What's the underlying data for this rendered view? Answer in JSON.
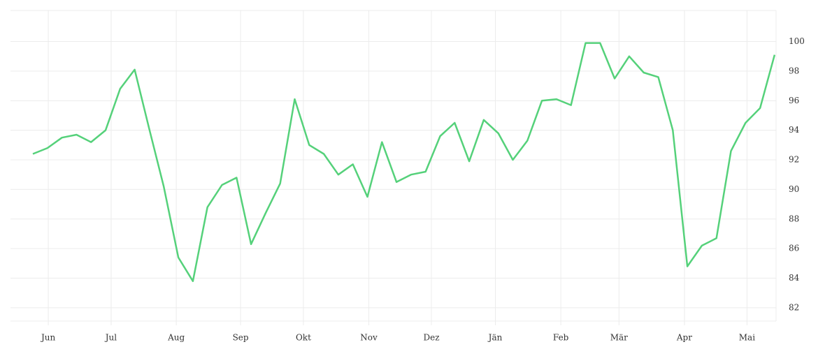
{
  "chart_data": {
    "type": "line",
    "series": [
      {
        "color": "#55d17a",
        "values": [
          92.4,
          92.8,
          93.5,
          93.7,
          93.2,
          94.0,
          96.8,
          98.1,
          94.1,
          90.2,
          85.4,
          83.8,
          88.8,
          90.3,
          90.8,
          86.3,
          88.4,
          90.4,
          96.1,
          93.0,
          92.4,
          91.0,
          91.7,
          89.5,
          93.2,
          90.5,
          91.0,
          91.2,
          93.6,
          94.5,
          91.9,
          94.7,
          93.8,
          92.0,
          93.3,
          96.0,
          96.1,
          95.7,
          99.9,
          99.9,
          97.5,
          99.0,
          97.9,
          97.6,
          94.0,
          84.8,
          86.2,
          86.7,
          92.6,
          94.5,
          95.5,
          99.1
        ]
      }
    ],
    "xlim": [
      -1.54,
      51.1
    ],
    "xticks": [
      {
        "value": 1.06,
        "label": "Jun"
      },
      {
        "value": 5.38,
        "label": "Jul"
      },
      {
        "value": 9.86,
        "label": "Aug"
      },
      {
        "value": 14.28,
        "label": "Sep"
      },
      {
        "value": 18.6,
        "label": "Okt"
      },
      {
        "value": 23.1,
        "label": "Nov"
      },
      {
        "value": 27.4,
        "label": "Dez"
      },
      {
        "value": 31.8,
        "label": "Jän"
      },
      {
        "value": 36.3,
        "label": "Feb"
      },
      {
        "value": 40.3,
        "label": "Mär"
      },
      {
        "value": 44.8,
        "label": "Apr"
      },
      {
        "value": 49.1,
        "label": "Mai"
      }
    ],
    "ylim": [
      81.1,
      102.1
    ],
    "yticks": [
      82,
      84,
      86,
      88,
      90,
      92,
      94,
      96,
      98,
      100
    ],
    "grid": true
  }
}
